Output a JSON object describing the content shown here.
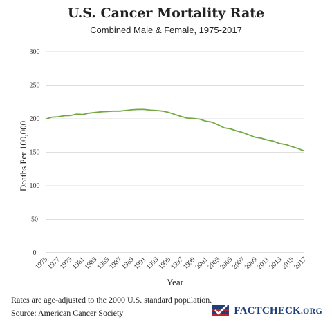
{
  "chart_data": {
    "type": "line",
    "title": "U.S. Cancer Mortality Rate",
    "subtitle": "Combined Male & Female, 1975-2017",
    "xlabel": "Year",
    "ylabel": "Deaths Per 100,000",
    "ylim": [
      0,
      300
    ],
    "yticks": [
      0,
      50,
      100,
      150,
      200,
      250,
      300
    ],
    "xlim": [
      1975,
      2017
    ],
    "xtick_labels": [
      "1975",
      "1977",
      "1979",
      "1981",
      "1983",
      "1985",
      "1987",
      "1989",
      "1991",
      "1993",
      "1995",
      "1997",
      "1999",
      "2001",
      "2003",
      "2005",
      "2007",
      "2009",
      "2011",
      "2013",
      "2015",
      "2017"
    ],
    "grid": true,
    "line_color": "#72a844",
    "series": [
      {
        "x": [
          1975,
          1976,
          1977,
          1978,
          1979,
          1980,
          1981,
          1982,
          1983,
          1984,
          1985,
          1986,
          1987,
          1988,
          1989,
          1990,
          1991,
          1992,
          1993,
          1994,
          1995,
          1996,
          1997,
          1998,
          1999,
          2000,
          2001,
          2002,
          2003,
          2004,
          2005,
          2006,
          2007,
          2008,
          2009,
          2010,
          2011,
          2012,
          2013,
          2014,
          2015,
          2016,
          2017
        ],
        "values": [
          199.5,
          202.5,
          203.0,
          204.5,
          205.0,
          207.0,
          206.5,
          208.5,
          209.5,
          210.5,
          211.0,
          211.5,
          211.5,
          212.5,
          213.5,
          214.0,
          214.0,
          213.0,
          212.5,
          211.5,
          209.5,
          206.5,
          203.5,
          201.0,
          200.5,
          199.5,
          196.5,
          195.0,
          191.0,
          186.5,
          185.0,
          182.0,
          179.5,
          176.0,
          172.5,
          171.0,
          168.5,
          166.5,
          163.0,
          161.5,
          158.5,
          155.5,
          152.0
        ]
      }
    ]
  },
  "footer": {
    "note": "Rates are age-adjusted to the 2000 U.S. standard population.",
    "source": "Source: American Cancer Society"
  },
  "logo": {
    "text_main": "FactCheck",
    "text_suffix": ".org",
    "icon": "flag-check-icon",
    "colors": {
      "blue": "#1e3f7a",
      "red": "#b7262e"
    }
  }
}
